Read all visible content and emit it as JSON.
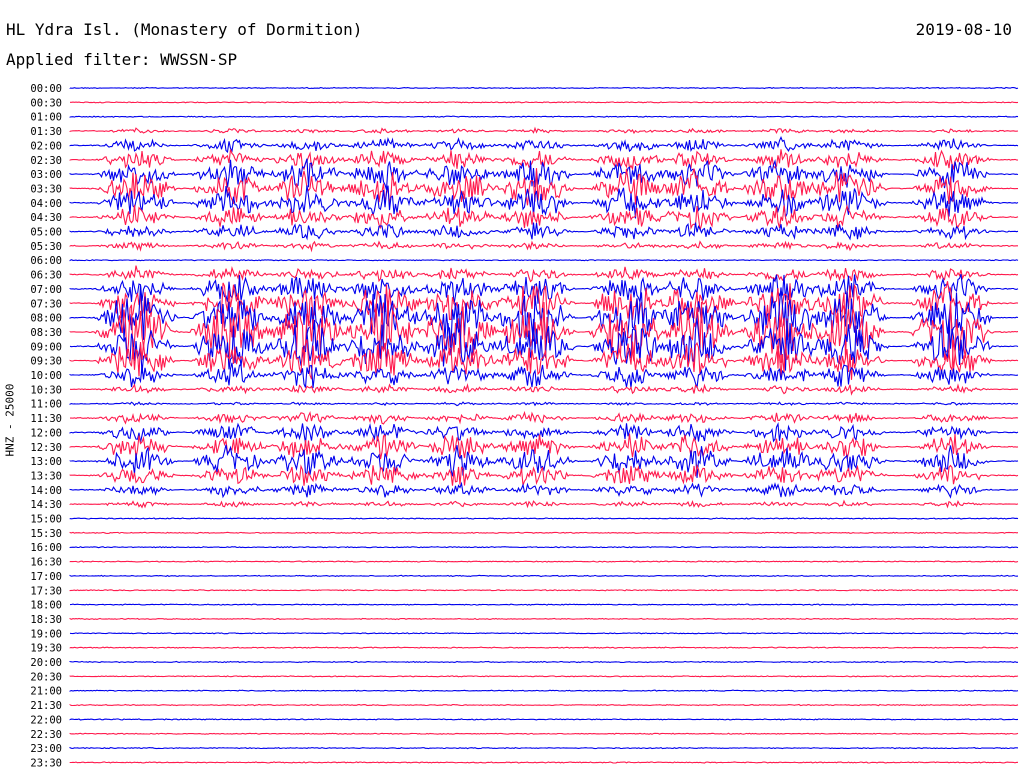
{
  "header": {
    "title": "HL Ydra Isl. (Monastery of Dormition)",
    "date": "2019-08-10",
    "filter_label": "Applied filter: WWSSN-SP"
  },
  "chart_data": {
    "type": "line",
    "title": "HL Ydra Isl. (Monastery of Dormition)",
    "subtitle": "Applied filter: WWSSN-SP",
    "ylabel": "HNZ - 25000",
    "xlabel": "",
    "grid": false,
    "colors": [
      "#0000ee",
      "#ff1a4d"
    ],
    "categories": [
      "00:00",
      "00:30",
      "01:00",
      "01:30",
      "02:00",
      "02:30",
      "03:00",
      "03:30",
      "04:00",
      "04:30",
      "05:00",
      "05:30",
      "06:00",
      "06:30",
      "07:00",
      "07:30",
      "08:00",
      "08:30",
      "09:00",
      "09:30",
      "10:00",
      "10:30",
      "11:00",
      "11:30",
      "12:00",
      "12:30",
      "13:00",
      "13:30",
      "14:00",
      "14:30",
      "15:00",
      "15:30",
      "16:00",
      "16:30",
      "17:00",
      "17:30",
      "18:00",
      "18:30",
      "19:00",
      "19:30",
      "20:00",
      "20:30",
      "21:00",
      "21:30",
      "22:00",
      "22:30",
      "23:00",
      "23:30"
    ],
    "burst_columns": [
      0.07,
      0.17,
      0.25,
      0.33,
      0.41,
      0.49,
      0.59,
      0.66,
      0.75,
      0.82,
      0.93
    ],
    "burst_rows": [
      {
        "start": 0.05,
        "end": 0.25,
        "peak": 0.55
      },
      {
        "start": 0.25,
        "end": 0.45,
        "peak": 1.0
      },
      {
        "start": 0.45,
        "end": 0.62,
        "peak": 0.45
      }
    ]
  }
}
